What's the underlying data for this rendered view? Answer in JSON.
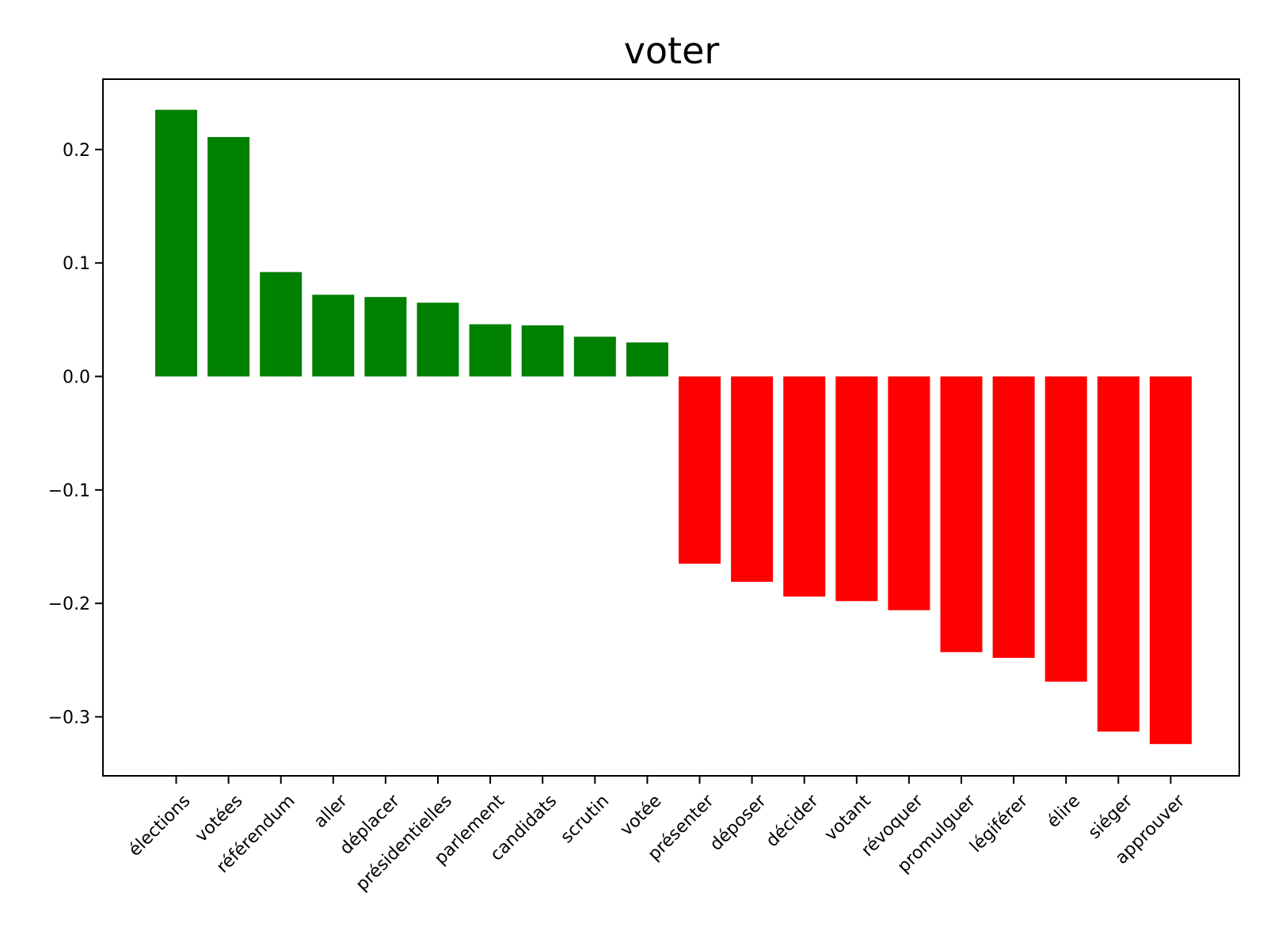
{
  "chart_data": {
    "type": "bar",
    "title": "voter",
    "xlabel": "",
    "ylabel": "",
    "categories": [
      "élections",
      "votées",
      "référendum",
      "aller",
      "déplacer",
      "présidentielles",
      "parlement",
      "candidats",
      "scrutin",
      "votée",
      "présenter",
      "déposer",
      "décider",
      "votant",
      "révoquer",
      "promulguer",
      "légiférer",
      "élire",
      "siéger",
      "approuver"
    ],
    "values": [
      0.235,
      0.211,
      0.092,
      0.072,
      0.07,
      0.065,
      0.046,
      0.045,
      0.035,
      0.03,
      -0.165,
      -0.181,
      -0.194,
      -0.198,
      -0.206,
      -0.243,
      -0.248,
      -0.269,
      -0.313,
      -0.324
    ],
    "ylim": [
      -0.352,
      0.262
    ],
    "yticks": [
      0.2,
      0.1,
      0.0,
      -0.1,
      -0.2,
      -0.3
    ],
    "ytick_labels": [
      "0.2",
      "0.1",
      "0.0",
      "−0.1",
      "−0.2",
      "−0.3"
    ],
    "positive_color": "#008000",
    "negative_color": "#ff0000",
    "grid": false,
    "legend": "none",
    "xtick_rotation_deg": 45
  }
}
